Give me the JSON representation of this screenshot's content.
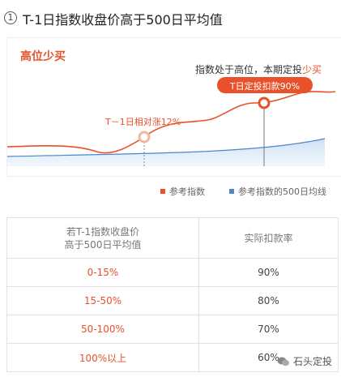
{
  "header": {
    "number": "1",
    "title": "T-1日指数收盘价高于500日平均值"
  },
  "chart": {
    "title": "高位少买",
    "annotation_prefix": "指数处于高位，本期定投",
    "annotation_highlight": "少买",
    "badge": "T日定投扣款90%",
    "point_label": "T－1日相对涨12%",
    "legend": {
      "index": "参考指数",
      "avg500": "参考指数的500日均线"
    },
    "colors": {
      "index": "#e8512a",
      "avg500": "#4a86c8"
    }
  },
  "table": {
    "header_col1_line1": "若T-1指数收盘价",
    "header_col1_line2": "高于500日平均值",
    "header_col2": "实际扣款率",
    "rows": [
      {
        "range": "0-15%",
        "rate": "90%"
      },
      {
        "range": "15-50%",
        "rate": "80%"
      },
      {
        "range": "50-100%",
        "rate": "70%"
      },
      {
        "range": "100%以上",
        "rate": "60%"
      }
    ]
  },
  "watermark": "石头定投"
}
